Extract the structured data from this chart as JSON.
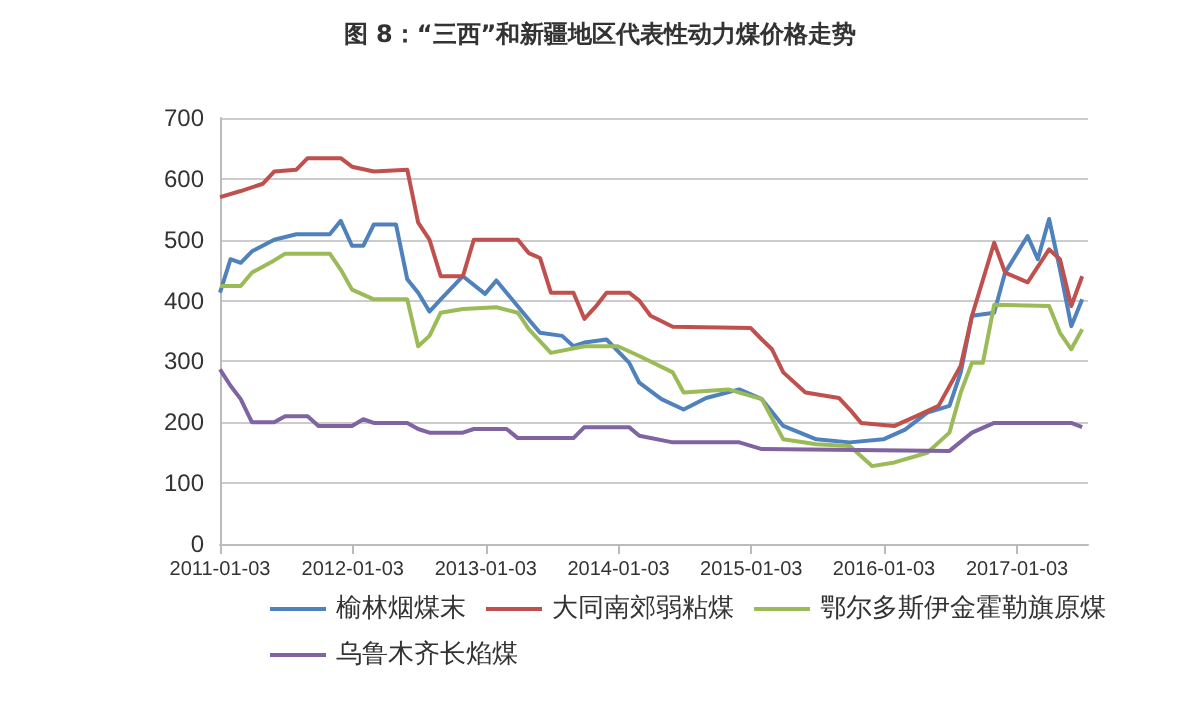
{
  "chart_data": {
    "type": "line",
    "title": "图 8：“三西”和新疆地区代表性动力煤价格走势",
    "grid": "y",
    "legend": "bottom",
    "marker": "none",
    "line_style": "solid",
    "xlim": [
      "2011-01-03",
      "2017-07-17"
    ],
    "xticks": [
      "2011-01-03",
      "2012-01-03",
      "2013-01-03",
      "2014-01-03",
      "2015-01-03",
      "2016-01-03",
      "2017-01-03"
    ],
    "ylim": [
      0,
      700
    ],
    "yticks": [
      0,
      100,
      200,
      300,
      400,
      500,
      600,
      700
    ],
    "series": [
      {
        "name": "榆林烟煤末",
        "color": "#4f81bd",
        "x": [
          "2011-01-03",
          "2011-02",
          "2011-03",
          "2011-04",
          "2011-06",
          "2011-08",
          "2011-11",
          "2011-12",
          "2012-01",
          "2012-02",
          "2012-03",
          "2012-05",
          "2012-06",
          "2012-07",
          "2012-08",
          "2012-09",
          "2012-11",
          "2013-01",
          "2013-02",
          "2013-03",
          "2013-05",
          "2013-06",
          "2013-08",
          "2013-09",
          "2013-10",
          "2013-12",
          "2014-02",
          "2014-03",
          "2014-05",
          "2014-07",
          "2014-09",
          "2014-12",
          "2015-02",
          "2015-04",
          "2015-07",
          "2015-10",
          "2016-01",
          "2016-03",
          "2016-05",
          "2016-07",
          "2016-08",
          "2016-09",
          "2016-11",
          "2016-12",
          "2017-02",
          "2017-03",
          "2017-04",
          "2017-05",
          "2017-06",
          "2017-07"
        ],
        "values": [
          413,
          468,
          462,
          481,
          500,
          509,
          509,
          531,
          490,
          490,
          525,
          525,
          435,
          413,
          382,
          402,
          440,
          411,
          433,
          413,
          369,
          347,
          342,
          325,
          331,
          336,
          298,
          265,
          238,
          221,
          240,
          254,
          238,
          194,
          172,
          167,
          172,
          188,
          216,
          227,
          282,
          375,
          380,
          446,
          506,
          468,
          534,
          451,
          358,
          402
        ]
      },
      {
        "name": "大同南郊弱粘煤",
        "color": "#c0504d",
        "x": [
          "2011-01-03",
          "2011-03",
          "2011-05",
          "2011-06",
          "2011-08",
          "2011-09",
          "2011-12",
          "2012-01",
          "2012-03",
          "2012-06",
          "2012-07",
          "2012-08",
          "2012-09",
          "2012-11",
          "2012-12",
          "2013-04",
          "2013-05",
          "2013-06",
          "2013-07",
          "2013-09",
          "2013-10",
          "2013-11",
          "2013-12",
          "2014-02",
          "2014-03",
          "2014-04",
          "2014-06",
          "2015-01",
          "2015-02",
          "2015-03",
          "2015-04",
          "2015-06",
          "2015-09",
          "2015-10",
          "2015-11",
          "2016-02",
          "2016-04",
          "2016-06",
          "2016-08",
          "2016-09",
          "2016-11",
          "2016-12",
          "2017-02",
          "2017-04",
          "2017-05",
          "2017-06",
          "2017-07"
        ],
        "values": [
          570,
          580,
          592,
          612,
          615,
          634,
          634,
          620,
          612,
          615,
          528,
          500,
          440,
          440,
          500,
          500,
          478,
          470,
          413,
          413,
          370,
          390,
          413,
          413,
          400,
          375,
          357,
          355,
          336,
          320,
          282,
          249,
          240,
          221,
          199,
          194,
          210,
          227,
          293,
          375,
          495,
          446,
          430,
          484,
          468,
          391,
          440
        ]
      },
      {
        "name": "鄂尔多斯伊金霍勒旗原煤",
        "color": "#9bbb59",
        "x": [
          "2011-01-03",
          "2011-03",
          "2011-04",
          "2011-06",
          "2011-07",
          "2011-11",
          "2011-12",
          "2012-01",
          "2012-03",
          "2012-06",
          "2012-07",
          "2012-08",
          "2012-09",
          "2012-11",
          "2013-02",
          "2013-04",
          "2013-05",
          "2013-07",
          "2013-10",
          "2014-01",
          "2014-03",
          "2014-06",
          "2014-07",
          "2014-11",
          "2015-02",
          "2015-04",
          "2015-07",
          "2015-10",
          "2015-12",
          "2016-02",
          "2016-05",
          "2016-07",
          "2016-08",
          "2016-09",
          "2016-10",
          "2016-11",
          "2017-04",
          "2017-05",
          "2017-06",
          "2017-07"
        ],
        "values": [
          424,
          424,
          446,
          466,
          477,
          477,
          451,
          418,
          402,
          402,
          325,
          342,
          380,
          386,
          389,
          380,
          353,
          314,
          325,
          325,
          309,
          282,
          249,
          254,
          238,
          172,
          164,
          161,
          128,
          134,
          150,
          183,
          249,
          298,
          298,
          393,
          391,
          347,
          320,
          353
        ]
      },
      {
        "name": "乌鲁木齐长焰煤",
        "color": "#8064a2",
        "x": [
          "2011-01-03",
          "2011-02",
          "2011-03",
          "2011-04",
          "2011-06",
          "2011-07",
          "2011-09",
          "2011-10",
          "2012-01",
          "2012-02",
          "2012-03",
          "2012-06",
          "2012-07",
          "2012-08",
          "2012-11",
          "2012-12",
          "2013-03",
          "2013-04",
          "2013-09",
          "2013-10",
          "2014-02",
          "2014-03",
          "2014-06",
          "2014-12",
          "2015-02",
          "2016-07",
          "2016-09",
          "2016-11",
          "2017-06",
          "2017-07"
        ],
        "values": [
          287,
          260,
          238,
          200,
          200,
          210,
          210,
          194,
          194,
          205,
          199,
          199,
          189,
          183,
          183,
          189,
          189,
          174,
          174,
          192,
          192,
          178,
          167,
          167,
          156,
          153,
          183,
          199,
          199,
          192
        ]
      }
    ]
  }
}
